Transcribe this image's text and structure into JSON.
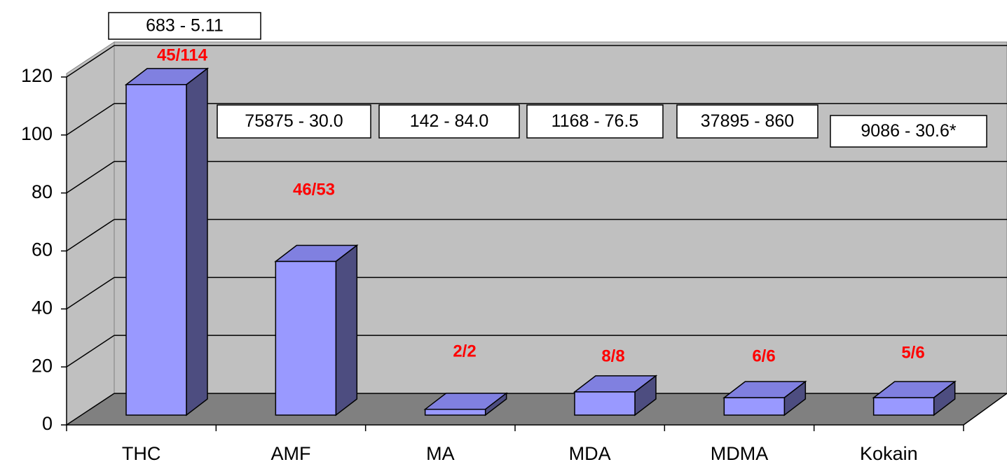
{
  "chart_data": {
    "type": "bar3d",
    "categories": [
      "THC",
      "AMF",
      "MA",
      "MDA",
      "MDMA",
      "Kokain"
    ],
    "values": [
      114,
      53,
      2,
      8,
      6,
      6
    ],
    "color": "#9999ff",
    "ylim": [
      0,
      120
    ],
    "yticks": [
      0,
      20,
      40,
      60,
      80,
      100,
      120
    ],
    "grid": true,
    "ratio_labels": [
      "45/114",
      "46/53",
      "2/2",
      "8/8",
      "6/6",
      "5/6"
    ],
    "box_labels": [
      "683 - 5.11",
      "75875 - 30.0",
      "142 - 84.0",
      "1168 - 76.5",
      "37895 - 860",
      "9086 - 30.6*"
    ]
  }
}
